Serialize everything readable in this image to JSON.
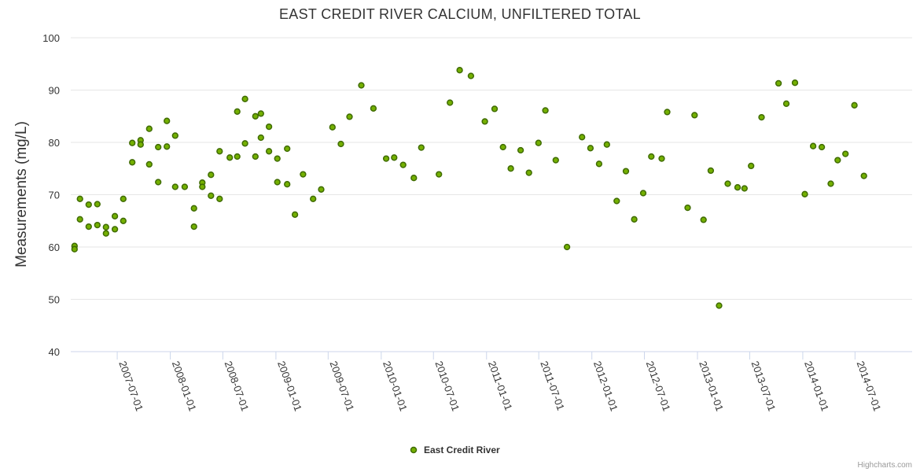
{
  "chart_data": {
    "type": "scatter",
    "title": "EAST CREDIT RIVER CALCIUM, UNFILTERED TOTAL",
    "xlabel": "",
    "ylabel": "Measurements (mg/L)",
    "ylim": [
      40,
      100
    ],
    "yticks": [
      "40",
      "50",
      "60",
      "70",
      "80",
      "90",
      "100"
    ],
    "xticks": [
      "2007-07-01",
      "2008-01-01",
      "2008-07-01",
      "2009-01-01",
      "2009-07-01",
      "2010-01-01",
      "2010-07-01",
      "2011-01-01",
      "2011-07-01",
      "2012-01-01",
      "2012-07-01",
      "2013-01-01",
      "2013-07-01",
      "2014-01-01",
      "2014-07-01"
    ],
    "xlim": [
      "2007-01-21",
      "2015-01-15"
    ],
    "grid": true,
    "legend_position": "bottom-center",
    "series": [
      {
        "name": "East Credit River",
        "color": "#74b000",
        "points": [
          [
            "2007-02-03",
            60.2
          ],
          [
            "2007-02-03",
            59.6
          ],
          [
            "2007-02-22",
            69.2
          ],
          [
            "2007-02-22",
            65.3
          ],
          [
            "2007-03-24",
            63.9
          ],
          [
            "2007-03-24",
            68.1
          ],
          [
            "2007-04-23",
            64.2
          ],
          [
            "2007-04-23",
            68.2
          ],
          [
            "2007-05-23",
            62.6
          ],
          [
            "2007-05-23",
            63.8
          ],
          [
            "2007-06-23",
            63.4
          ],
          [
            "2007-06-23",
            65.9
          ],
          [
            "2007-07-22",
            69.2
          ],
          [
            "2007-07-22",
            65.0
          ],
          [
            "2007-08-22",
            76.2
          ],
          [
            "2007-08-22",
            79.9
          ],
          [
            "2007-09-20",
            80.4
          ],
          [
            "2007-09-20",
            79.6
          ],
          [
            "2007-10-20",
            82.6
          ],
          [
            "2007-10-20",
            75.8
          ],
          [
            "2007-11-20",
            72.4
          ],
          [
            "2007-11-20",
            79.1
          ],
          [
            "2007-12-20",
            79.2
          ],
          [
            "2007-12-20",
            84.1
          ],
          [
            "2008-01-18",
            71.5
          ],
          [
            "2008-01-18",
            81.3
          ],
          [
            "2008-02-20",
            71.5
          ],
          [
            "2008-03-23",
            63.9
          ],
          [
            "2008-03-23",
            67.4
          ],
          [
            "2008-04-21",
            72.3
          ],
          [
            "2008-04-21",
            71.5
          ],
          [
            "2008-05-21",
            69.8
          ],
          [
            "2008-05-21",
            73.8
          ],
          [
            "2008-06-20",
            69.2
          ],
          [
            "2008-06-20",
            78.3
          ],
          [
            "2008-07-25",
            77.1
          ],
          [
            "2008-08-20",
            85.9
          ],
          [
            "2008-08-20",
            77.3
          ],
          [
            "2008-09-16",
            79.8
          ],
          [
            "2008-09-16",
            88.3
          ],
          [
            "2008-10-22",
            85.0
          ],
          [
            "2008-10-22",
            77.3
          ],
          [
            "2008-11-10",
            85.5
          ],
          [
            "2008-11-10",
            80.9
          ],
          [
            "2008-12-08",
            83.0
          ],
          [
            "2008-12-08",
            78.3
          ],
          [
            "2009-01-06",
            76.9
          ],
          [
            "2009-01-06",
            72.4
          ],
          [
            "2009-02-09",
            78.8
          ],
          [
            "2009-02-09",
            72.0
          ],
          [
            "2009-03-08",
            66.2
          ],
          [
            "2009-04-05",
            73.9
          ],
          [
            "2009-05-10",
            69.2
          ],
          [
            "2009-06-07",
            71.0
          ],
          [
            "2009-07-16",
            82.9
          ],
          [
            "2009-08-14",
            79.7
          ],
          [
            "2009-09-13",
            84.9
          ],
          [
            "2009-10-24",
            90.9
          ],
          [
            "2009-12-05",
            86.5
          ],
          [
            "2010-01-18",
            76.9
          ],
          [
            "2010-02-15",
            77.1
          ],
          [
            "2010-03-18",
            75.7
          ],
          [
            "2010-04-24",
            73.2
          ],
          [
            "2010-05-20",
            79.0
          ],
          [
            "2010-07-20",
            73.9
          ],
          [
            "2010-08-27",
            87.6
          ],
          [
            "2010-09-30",
            93.8
          ],
          [
            "2010-11-08",
            92.7
          ],
          [
            "2010-12-26",
            84.0
          ],
          [
            "2011-01-29",
            86.4
          ],
          [
            "2011-02-27",
            79.1
          ],
          [
            "2011-03-26",
            75.0
          ],
          [
            "2011-04-29",
            78.5
          ],
          [
            "2011-05-28",
            74.2
          ],
          [
            "2011-06-30",
            79.9
          ],
          [
            "2011-07-24",
            86.1
          ],
          [
            "2011-08-29",
            76.6
          ],
          [
            "2011-10-07",
            60.0
          ],
          [
            "2011-11-28",
            81.0
          ],
          [
            "2011-12-27",
            78.9
          ],
          [
            "2012-01-26",
            75.9
          ],
          [
            "2012-02-22",
            79.6
          ],
          [
            "2012-03-27",
            68.8
          ],
          [
            "2012-04-28",
            74.5
          ],
          [
            "2012-05-27",
            65.3
          ],
          [
            "2012-06-27",
            70.3
          ],
          [
            "2012-07-25",
            77.3
          ],
          [
            "2012-08-30",
            76.9
          ],
          [
            "2012-09-18",
            85.8
          ],
          [
            "2012-11-28",
            67.5
          ],
          [
            "2012-12-22",
            85.2
          ],
          [
            "2013-01-22",
            65.2
          ],
          [
            "2013-02-16",
            74.6
          ],
          [
            "2013-03-17",
            48.8
          ],
          [
            "2013-04-16",
            72.1
          ],
          [
            "2013-05-20",
            71.4
          ],
          [
            "2013-06-13",
            71.2
          ],
          [
            "2013-07-06",
            75.5
          ],
          [
            "2013-08-11",
            84.8
          ],
          [
            "2013-10-09",
            91.3
          ],
          [
            "2013-11-05",
            87.4
          ],
          [
            "2013-12-05",
            91.4
          ],
          [
            "2014-01-08",
            70.1
          ],
          [
            "2014-02-06",
            79.3
          ],
          [
            "2014-03-08",
            79.1
          ],
          [
            "2014-04-08",
            72.1
          ],
          [
            "2014-05-02",
            76.6
          ],
          [
            "2014-05-29",
            77.8
          ],
          [
            "2014-06-29",
            87.1
          ],
          [
            "2014-08-01",
            73.6
          ]
        ]
      }
    ]
  },
  "legend": {
    "items": [
      {
        "label": "East Credit River",
        "color": "#74b000"
      }
    ]
  },
  "credits": "Highcharts.com"
}
